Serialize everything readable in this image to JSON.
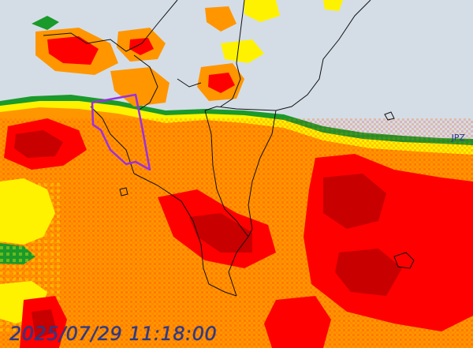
{
  "map": {
    "timestamp": "2025/07/29 11:18:00",
    "corner_label": "JPZ",
    "colors": {
      "sea": "#d4dde6",
      "green": "#1a9a2a",
      "yellow": "#fff200",
      "orange": "#ff9600",
      "dark_orange": "#ff6400",
      "red": "#ff0000",
      "dark_red": "#c80000",
      "warning_polygon": "#9b30e0",
      "border_lines": "#111111",
      "timestamp_text": "#2a3a8c"
    },
    "layers": [
      "precipitation-radar",
      "admin-borders",
      "warning-polygon"
    ]
  }
}
